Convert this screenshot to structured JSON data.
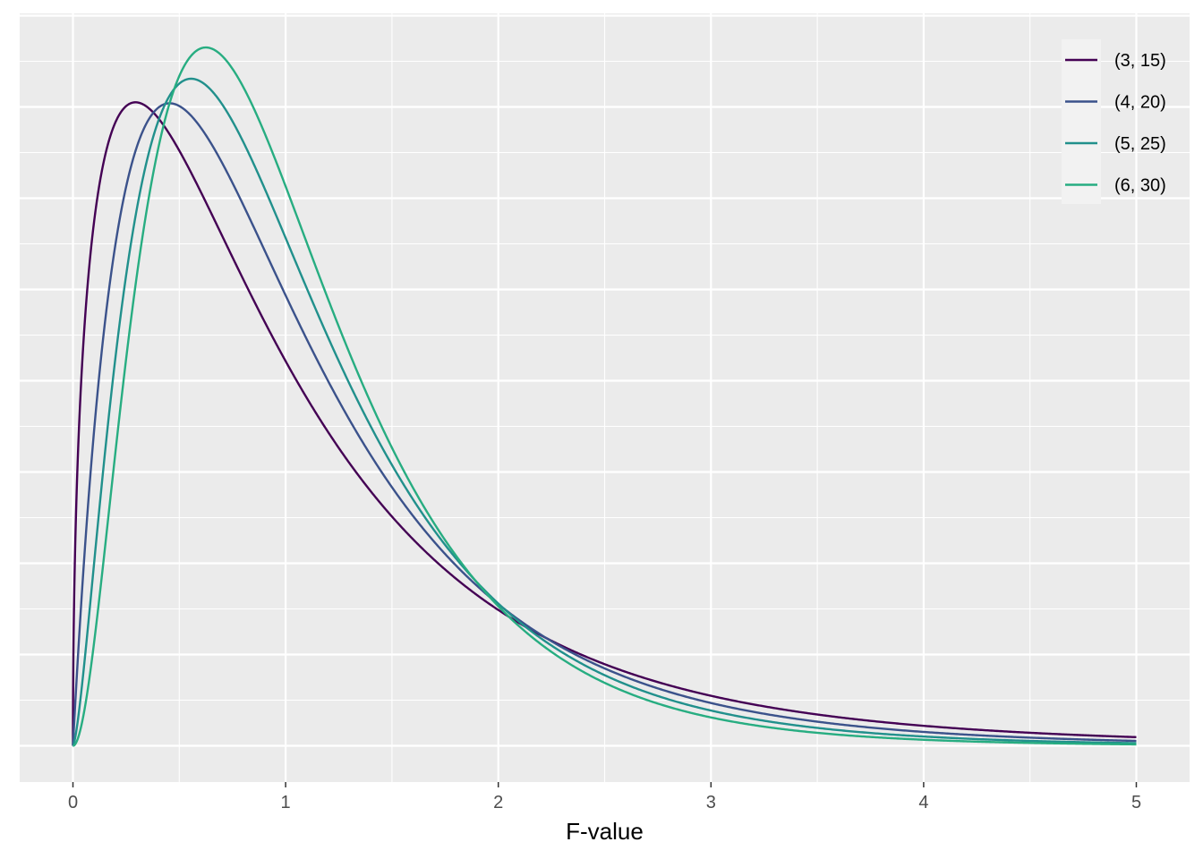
{
  "chart_data": {
    "type": "line",
    "title": "",
    "xlabel": "F-value",
    "ylabel": "",
    "xlim": [
      -0.25,
      5.25
    ],
    "ylim": [
      -0.04,
      0.8
    ],
    "x_ticks": [
      "0",
      "1",
      "2",
      "3",
      "4",
      "5"
    ],
    "y_ticks_labeled": false,
    "grid": true,
    "legend_position": "top-right",
    "background": "#EBEBEB",
    "series": [
      {
        "name": "(3, 15)",
        "df1": 3,
        "df2": 15,
        "color": "#440154"
      },
      {
        "name": "(4, 20)",
        "df1": 4,
        "df2": 20,
        "color": "#3B528B"
      },
      {
        "name": "(5, 25)",
        "df1": 5,
        "df2": 25,
        "color": "#21908C"
      },
      {
        "name": "(6, 30)",
        "df1": 6,
        "df2": 30,
        "color": "#27AD81"
      }
    ]
  }
}
